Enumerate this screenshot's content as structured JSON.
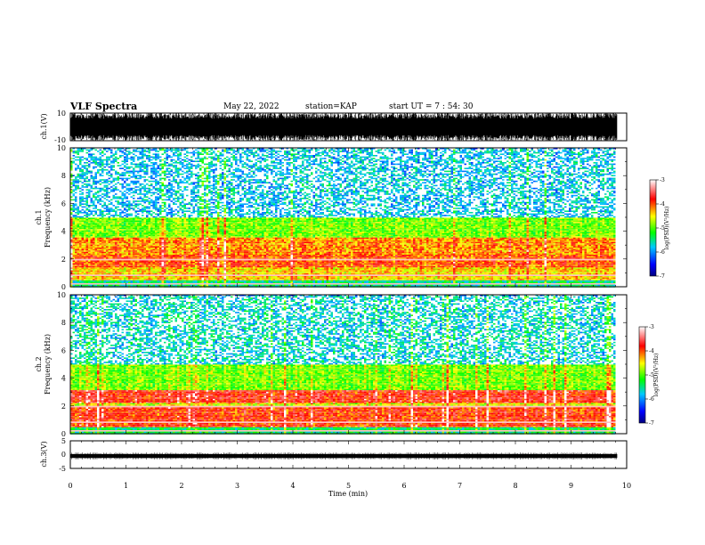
{
  "header": {
    "title": "VLF Spectra",
    "date": "May 22, 2022",
    "station": "station=KAP",
    "start": "start  UT  =   7 : 54: 30"
  },
  "chart_data": [
    {
      "type": "line",
      "panel": "waveform-ch1",
      "ylabel": "ch.1(V)",
      "ylim": [
        -10,
        10
      ],
      "yticks": [
        "10",
        "-10"
      ],
      "x_extent_min": [
        0,
        9.83
      ],
      "note_values": "dense waveform spanning nearly the full range"
    },
    {
      "type": "heatmap",
      "panel": "spectrogram-ch1",
      "ylabel": "ch.1 Frequency (kHz)",
      "ylim": [
        0,
        10
      ],
      "yticks": [
        "0",
        "2",
        "4",
        "6",
        "8",
        "10"
      ],
      "bands": [
        {
          "from": 0.0,
          "to": 0.5,
          "level": -5.5
        },
        {
          "from": 0.5,
          "to": 1.4,
          "level": -4.4
        },
        {
          "from": 1.4,
          "to": 2.4,
          "level": -4.0
        },
        {
          "from": 2.4,
          "to": 3.6,
          "level": -4.2
        },
        {
          "from": 3.6,
          "to": 5.0,
          "level": -4.9
        },
        {
          "from": 5.0,
          "to": 10.0,
          "level": -5.8
        }
      ],
      "colorbar": {
        "label": "log(PSD)(V²/Hz)",
        "range": [
          -7,
          -3
        ],
        "ticks": [
          "-3",
          "-4",
          "-5",
          "-6",
          "-7"
        ]
      }
    },
    {
      "type": "heatmap",
      "panel": "spectrogram-ch2",
      "ylabel": "ch.2 Frequency (kHz)",
      "ylim": [
        0,
        10
      ],
      "yticks": [
        "0",
        "2",
        "4",
        "6",
        "8",
        "10"
      ],
      "bands": [
        {
          "from": 0.0,
          "to": 0.5,
          "level": -5.4
        },
        {
          "from": 0.5,
          "to": 1.9,
          "level": -3.9
        },
        {
          "from": 1.9,
          "to": 2.3,
          "level": -4.6
        },
        {
          "from": 2.3,
          "to": 3.2,
          "level": -3.8
        },
        {
          "from": 3.2,
          "to": 5.0,
          "level": -4.9
        },
        {
          "from": 5.0,
          "to": 10.0,
          "level": -5.7
        }
      ],
      "colorbar": {
        "label": "log(PSD)(V²/Hz)",
        "range": [
          -7,
          -3
        ],
        "ticks": [
          "-3",
          "-4",
          "-5",
          "-6",
          "-7"
        ]
      }
    },
    {
      "type": "line",
      "panel": "waveform-ch3",
      "ylabel": "ch.3(V)",
      "ylim": [
        -5,
        5
      ],
      "yticks": [
        "5",
        "0",
        "-5"
      ],
      "band": [
        -1.2,
        0.2
      ]
    }
  ],
  "xaxis": {
    "label": "Time (min)",
    "range": [
      0,
      10
    ],
    "ticks": [
      "0",
      "1",
      "2",
      "3",
      "4",
      "5",
      "6",
      "7",
      "8",
      "9",
      "10"
    ],
    "data_end": 9.83
  }
}
